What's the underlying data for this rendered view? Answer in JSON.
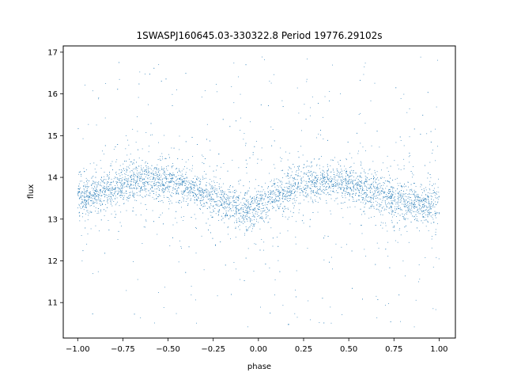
{
  "chart_data": {
    "type": "scatter",
    "title": "1SWASPJ160645.03-330322.8 Period 19776.29102s",
    "xlabel": "phase",
    "ylabel": "flux",
    "xlim": [
      -1.08,
      1.09
    ],
    "ylim": [
      10.15,
      17.15
    ],
    "x_ticks": [
      -1.0,
      -0.75,
      -0.5,
      -0.25,
      0.0,
      0.25,
      0.5,
      0.75,
      1.0
    ],
    "x_tick_labels": [
      "−1.00",
      "−0.75",
      "−0.50",
      "−0.25",
      "0.00",
      "0.25",
      "0.50",
      "0.75",
      "1.00"
    ],
    "y_ticks": [
      11,
      12,
      13,
      14,
      15,
      16,
      17
    ],
    "y_tick_labels": [
      "11",
      "12",
      "13",
      "14",
      "15",
      "16",
      "17"
    ],
    "grid": false,
    "marker_color": "#1f77b4",
    "series": [
      {
        "phase_range": [
          -1.0,
          1.0
        ],
        "trend": {
          "description_points_x": [
            -1.0,
            -0.85,
            -0.65,
            -0.45,
            -0.3,
            -0.15,
            -0.05,
            0.1,
            0.25,
            0.35,
            0.45,
            0.6,
            0.8,
            0.95,
            1.0
          ],
          "description_points_y": [
            13.45,
            13.7,
            13.95,
            13.85,
            13.6,
            13.35,
            13.2,
            13.55,
            13.85,
            13.95,
            13.9,
            13.7,
            13.4,
            13.3,
            13.35
          ]
        },
        "core_scatter": 0.22,
        "outlier_range": [
          10.4,
          16.9
        ]
      }
    ]
  }
}
